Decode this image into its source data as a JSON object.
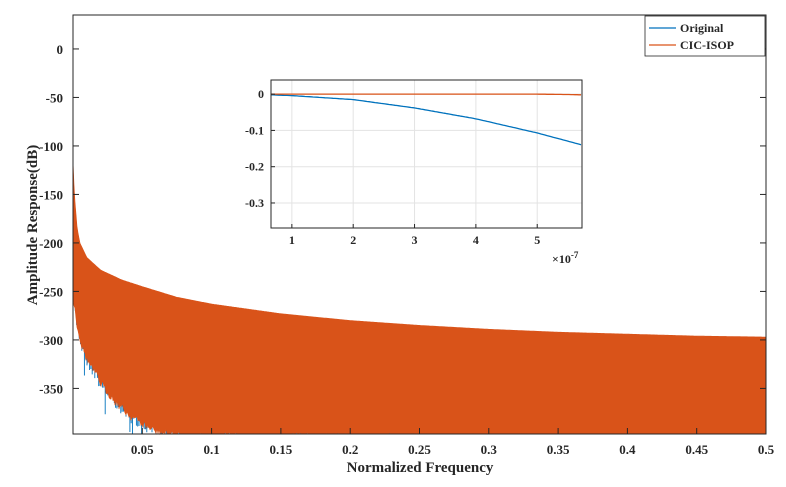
{
  "chart_data": {
    "type": "line",
    "xlabel": "Normalized Frequency",
    "ylabel": "Amplitude Response(dB)",
    "xlim": [
      0,
      0.5
    ],
    "ylim": [
      -397,
      35
    ],
    "xticks": [
      "0.05",
      "0.1",
      "0.15",
      "0.2",
      "0.25",
      "0.3",
      "0.35",
      "0.4",
      "0.45",
      "0.5"
    ],
    "xtick_values": [
      0.05,
      0.1,
      0.15,
      0.2,
      0.25,
      0.3,
      0.35,
      0.4,
      0.45,
      0.5
    ],
    "yticks": [
      "0",
      "-50",
      "-100",
      "-150",
      "-200",
      "-250",
      "-300",
      "-350"
    ],
    "ytick_values": [
      0,
      -50,
      -100,
      -150,
      -200,
      -250,
      -300,
      -350
    ],
    "legend": {
      "placement": "top-right",
      "entries": [
        "Original",
        "CIC-ISOP"
      ]
    },
    "colors": {
      "Original": "#0072BD",
      "CIC-ISOP": "#D95319"
    },
    "series": [
      {
        "name": "CIC-ISOP",
        "upper_envelope": {
          "x": [
            0,
            0.001,
            0.003,
            0.005,
            0.01,
            0.02,
            0.035,
            0.05,
            0.075,
            0.1,
            0.15,
            0.2,
            0.25,
            0.3,
            0.35,
            0.4,
            0.45,
            0.5
          ],
          "y": [
            -115,
            -150,
            -185,
            -200,
            -215,
            -228,
            -238,
            -245,
            -256,
            -263,
            -273,
            -280,
            -285,
            -289,
            -292,
            -294,
            -296,
            -297
          ]
        },
        "lower_envelope": {
          "x": [
            0,
            0.003,
            0.006,
            0.01,
            0.02,
            0.03,
            0.04,
            0.05,
            0.06,
            0.08,
            0.5
          ],
          "y": [
            -250,
            -280,
            -300,
            -315,
            -340,
            -358,
            -372,
            -382,
            -390,
            -395,
            -397
          ]
        }
      },
      {
        "name": "Original",
        "upper_envelope": {
          "x": [
            0,
            0.05,
            0.1,
            0.2,
            0.3,
            0.4,
            0.5
          ],
          "y": [
            -115,
            -245,
            -263,
            -280,
            -289,
            -294,
            -297
          ]
        }
      }
    ],
    "inset": {
      "xlim": [
        0.66,
        5.73
      ],
      "ylim": [
        -0.369,
        0.039
      ],
      "xticks": [
        "1",
        "2",
        "3",
        "4",
        "5"
      ],
      "xtick_values": [
        1,
        2,
        3,
        4,
        5
      ],
      "yticks": [
        "0",
        "-0.1",
        "-0.2",
        "-0.3"
      ],
      "ytick_values": [
        0,
        -0.1,
        -0.2,
        -0.3
      ],
      "x_exponent_label": "×10",
      "x_exponent": "-7",
      "series": [
        {
          "name": "Original",
          "x": [
            0.66,
            1,
            2,
            3,
            4,
            5,
            5.73
          ],
          "y": [
            -0.002,
            -0.004,
            -0.015,
            -0.038,
            -0.068,
            -0.107,
            -0.14
          ]
        },
        {
          "name": "CIC-ISOP",
          "x": [
            0.66,
            1,
            2,
            3,
            4,
            5,
            5.5,
            5.73
          ],
          "y": [
            0,
            0,
            0,
            0,
            0,
            0,
            -0.001,
            -0.002
          ]
        }
      ]
    }
  }
}
